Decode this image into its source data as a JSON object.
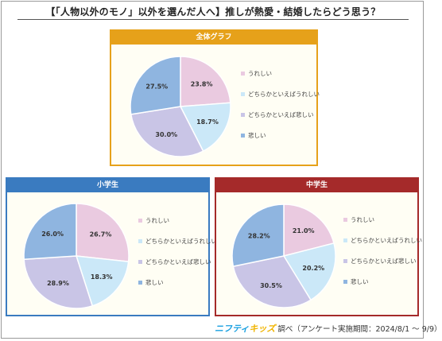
{
  "page_title": "【「人物以外のモノ」以外を選んだ人へ】推しが熱愛・結婚したらどう思う？",
  "footer": {
    "brand_part1": "ニフティ",
    "brand_part2": "キッズ",
    "text": "調べ（アンケート実施期間：2024/8/1 ～ 9/9）"
  },
  "chart_data": [
    {
      "type": "pie",
      "title": "全体グラフ",
      "header_color": "#e6a11a",
      "categories": [
        "うれしい",
        "どちらかといえばうれしい",
        "どちらかといえば悲しい",
        "悲しい"
      ],
      "values": [
        23.8,
        18.7,
        30.0,
        27.5
      ],
      "labels": [
        "23.8%",
        "18.7%",
        "30.0%",
        "27.5%"
      ],
      "colors": [
        "#eacae0",
        "#cbe8f8",
        "#c9c5e6",
        "#8fb5e0"
      ],
      "legend": "right"
    },
    {
      "type": "pie",
      "title": "小学生",
      "header_color": "#3a7bc0",
      "categories": [
        "うれしい",
        "どちらかといえばうれしい",
        "どちらかといえば悲しい",
        "悲しい"
      ],
      "values": [
        26.7,
        18.3,
        28.9,
        26.0
      ],
      "labels": [
        "26.7%",
        "18.3%",
        "28.9%",
        "26.0%"
      ],
      "colors": [
        "#eacae0",
        "#cbe8f8",
        "#c9c5e6",
        "#8fb5e0"
      ],
      "legend": "right"
    },
    {
      "type": "pie",
      "title": "中学生",
      "header_color": "#a52a2a",
      "categories": [
        "うれしい",
        "どちらかといえばうれしい",
        "どちらかといえば悲しい",
        "悲しい"
      ],
      "values": [
        21.0,
        20.2,
        30.5,
        28.2
      ],
      "labels": [
        "21.0%",
        "20.2%",
        "30.5%",
        "28.2%"
      ],
      "colors": [
        "#eacae0",
        "#cbe8f8",
        "#c9c5e6",
        "#8fb5e0"
      ],
      "legend": "right"
    }
  ]
}
